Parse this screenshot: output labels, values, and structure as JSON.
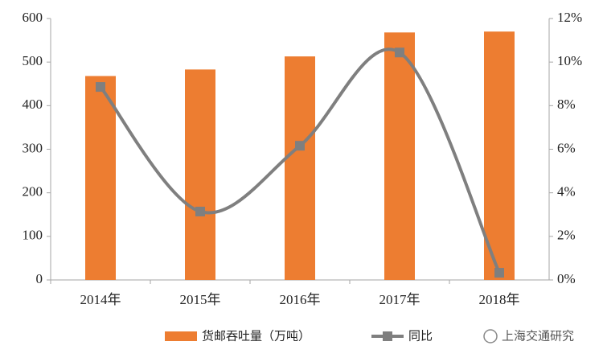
{
  "chart_data": {
    "type": "bar-line",
    "categories": [
      "2014年",
      "2015年",
      "2016年",
      "2017年",
      "2018年"
    ],
    "series": [
      {
        "name": "货邮吞吐量（万吨）",
        "type": "bar",
        "color": "#ed7d31",
        "values": [
          468,
          483,
          513,
          568,
          570
        ]
      },
      {
        "name": "同比",
        "type": "line",
        "axis": "y2",
        "color": "#7f7f7f",
        "values": [
          8.86,
          3.14,
          6.16,
          10.44,
          0.33
        ]
      }
    ],
    "ylim": [
      0,
      600
    ],
    "yticks": [
      0,
      100,
      200,
      300,
      400,
      500,
      600
    ],
    "y2lim": [
      0,
      12
    ],
    "y2ticks": [
      {
        "value": 0,
        "label": "0%"
      },
      {
        "value": 2,
        "label": "2%"
      },
      {
        "value": 4,
        "label": "4%"
      },
      {
        "value": 6,
        "label": "6%"
      },
      {
        "value": 8,
        "label": "8%"
      },
      {
        "value": 10,
        "label": "10%"
      },
      {
        "value": 12,
        "label": "12%"
      }
    ],
    "watermark": "上海交通研究"
  }
}
